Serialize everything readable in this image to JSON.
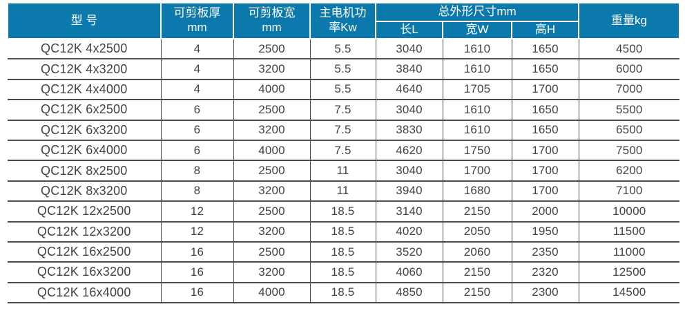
{
  "colors": {
    "header_bg": "#0b79ab",
    "header_text": "#ffffff",
    "body_text": "#414244",
    "grid_line": "#4b4c4e",
    "page_bg": "#ffffff"
  },
  "table": {
    "header": {
      "model": "型 号",
      "thickness": [
        "可剪板厚",
        "mm"
      ],
      "sheet_width": [
        "可剪板宽",
        "mm"
      ],
      "motor_power": [
        "主电机功",
        "率Kw"
      ],
      "dimensions_group": "总外形尺寸mm",
      "dim_length": "长L",
      "dim_width": "宽W",
      "dim_height": "高H",
      "weight": "重量kg"
    },
    "column_keys": [
      "model",
      "thickness-mm",
      "width-mm",
      "motor-power-kw",
      "length-l",
      "width-w",
      "height-h",
      "weight-kg"
    ],
    "rows": [
      [
        "QC12K 4x2500",
        "4",
        "2500",
        "5.5",
        "3040",
        "1610",
        "1650",
        "4500"
      ],
      [
        "QC12K 4x3200",
        "4",
        "3200",
        "5.5",
        "3840",
        "1610",
        "1650",
        "6000"
      ],
      [
        "QC12K 4x4000",
        "4",
        "4000",
        "5.5",
        "4640",
        "1705",
        "1700",
        "7000"
      ],
      [
        "QC12K 6x2500",
        "6",
        "2500",
        "7.5",
        "3040",
        "1610",
        "1650",
        "5500"
      ],
      [
        "QC12K 6x3200",
        "6",
        "3200",
        "7.5",
        "3830",
        "1610",
        "1650",
        "6500"
      ],
      [
        "QC12K 6x4000",
        "6",
        "4000",
        "7.5",
        "4620",
        "1750",
        "1700",
        "7500"
      ],
      [
        "QC12K 8x2500",
        "8",
        "2500",
        "11",
        "3040",
        "1700",
        "1700",
        "6200"
      ],
      [
        "QC12K 8x3200",
        "8",
        "3200",
        "11",
        "3940",
        "1680",
        "1700",
        "7100"
      ],
      [
        "QC12K 12x2500",
        "12",
        "2500",
        "18.5",
        "3140",
        "2150",
        "2000",
        "10000"
      ],
      [
        "QC12K 12x3200",
        "12",
        "3200",
        "18.5",
        "4020",
        "2050",
        "1950",
        "11500"
      ],
      [
        "QC12K 16x2500",
        "16",
        "2500",
        "18.5",
        "3520",
        "2060",
        "2350",
        "11000"
      ],
      [
        "QC12K 16x3200",
        "16",
        "3200",
        "18.5",
        "4060",
        "2150",
        "2320",
        "12500"
      ],
      [
        "QC12K 16x4000",
        "16",
        "4000",
        "18.5",
        "4850",
        "2150",
        "2300",
        "14500"
      ]
    ]
  }
}
